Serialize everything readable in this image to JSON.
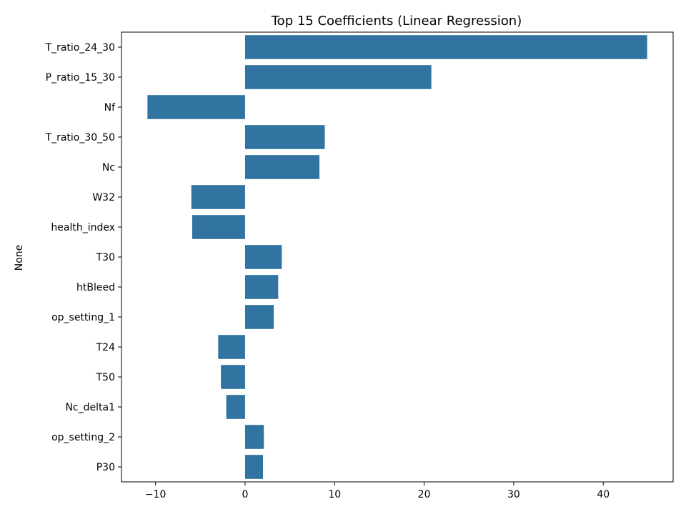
{
  "chart_data": {
    "type": "bar",
    "orientation": "horizontal",
    "title": "Top 15 Coefficients (Linear Regression)",
    "xlabel": "",
    "ylabel": "None",
    "xlim": [
      -13.8,
      47.8
    ],
    "xticks": [
      -10,
      0,
      10,
      20,
      30,
      40
    ],
    "bar_color": "#3274a1",
    "grid": false,
    "categories": [
      "T_ratio_24_30",
      "P_ratio_15_30",
      "Nf",
      "T_ratio_30_50",
      "Nc",
      "W32",
      "health_index",
      "T30",
      "htBleed",
      "op_setting_1",
      "T24",
      "T50",
      "Nc_delta1",
      "op_setting_2",
      "P30"
    ],
    "values": [
      44.9,
      20.8,
      -10.9,
      8.9,
      8.3,
      -6.0,
      -5.9,
      4.1,
      3.7,
      3.2,
      -3.0,
      -2.7,
      -2.1,
      2.1,
      2.0
    ]
  }
}
